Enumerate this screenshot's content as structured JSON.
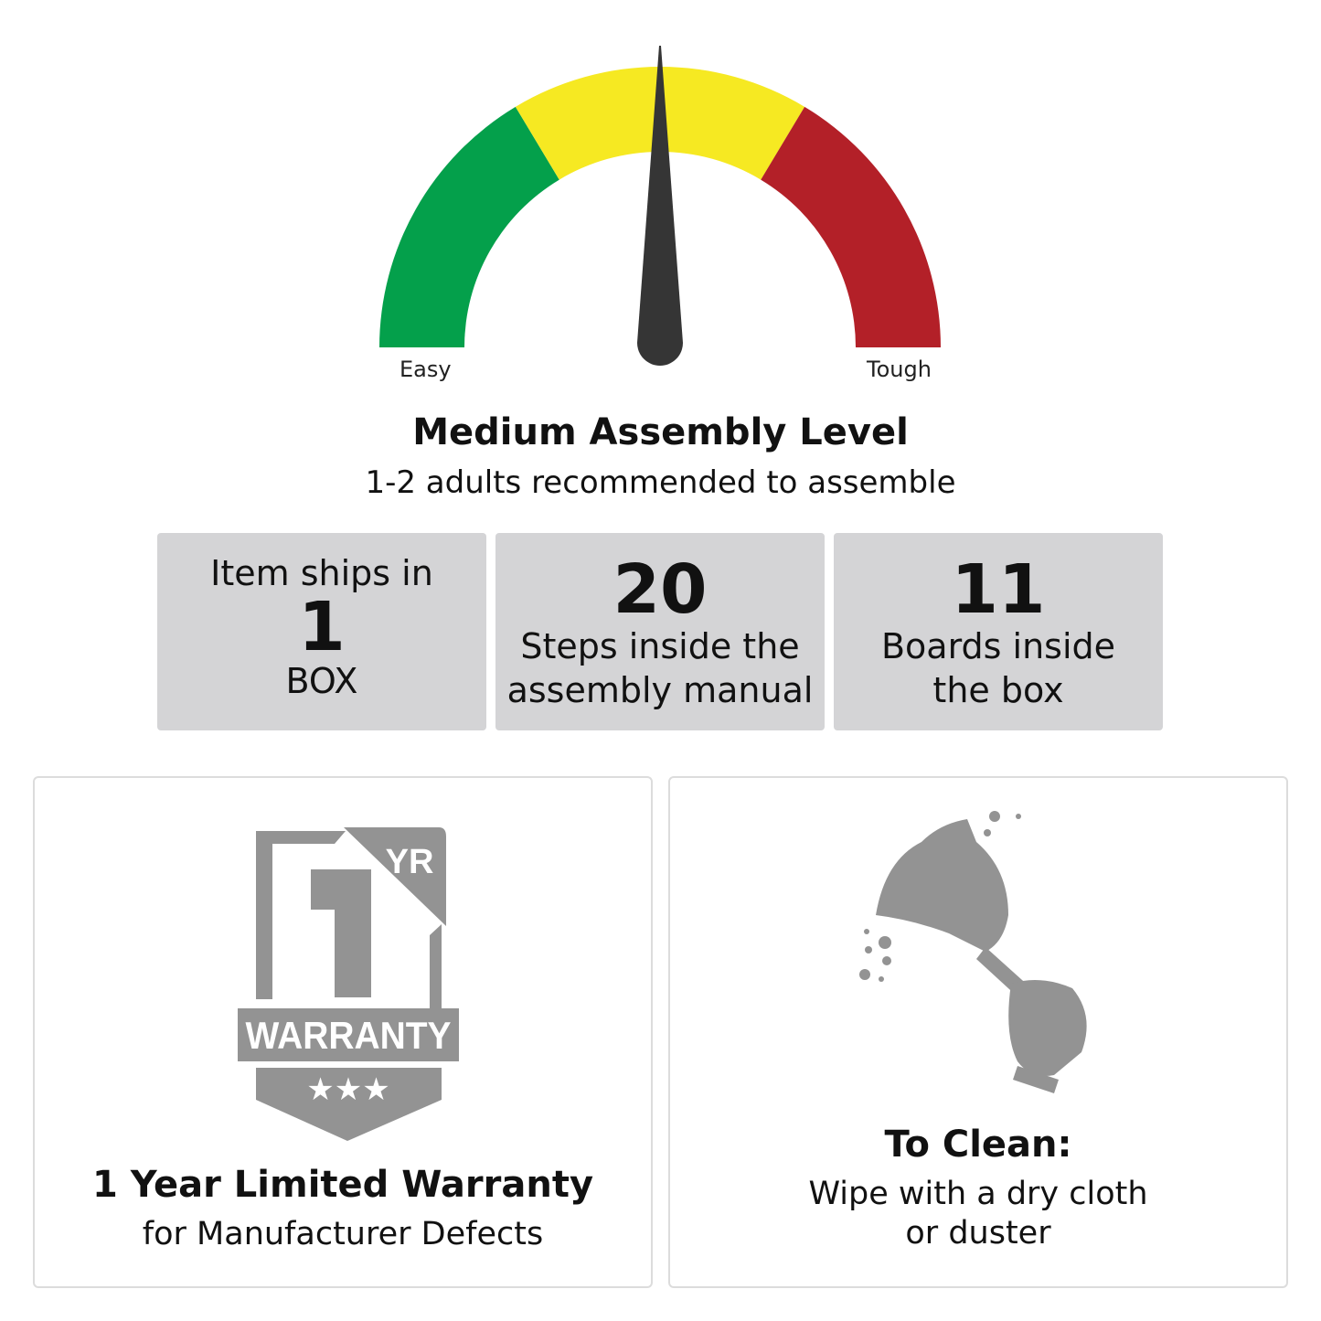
{
  "gauge": {
    "min_label": "Easy",
    "max_label": "Tough",
    "level": 0.5,
    "segments": [
      {
        "color": "#04a04b"
      },
      {
        "color": "#f6e922"
      },
      {
        "color": "#b32028"
      }
    ],
    "needle_color": "#353535"
  },
  "assembly": {
    "title": "Medium Assembly Level",
    "subtitle": "1-2 adults recommended to assemble"
  },
  "stats": [
    {
      "pre": "Item ships in",
      "value": "1",
      "label": "BOX"
    },
    {
      "value": "20",
      "label_line1": "Steps inside the",
      "label_line2": "assembly manual"
    },
    {
      "value": "11",
      "label_line1": "Boards inside",
      "label_line2": "the box"
    }
  ],
  "warranty": {
    "badge_number": "1",
    "badge_unit": "YR",
    "badge_text": "WARRANTY",
    "title": "1 Year Limited Warranty",
    "subtitle": "for Manufacturer Defects",
    "icon_color": "#939393"
  },
  "cleaning": {
    "title": "To Clean:",
    "line1": "Wipe with a dry cloth",
    "line2": "or duster"
  }
}
